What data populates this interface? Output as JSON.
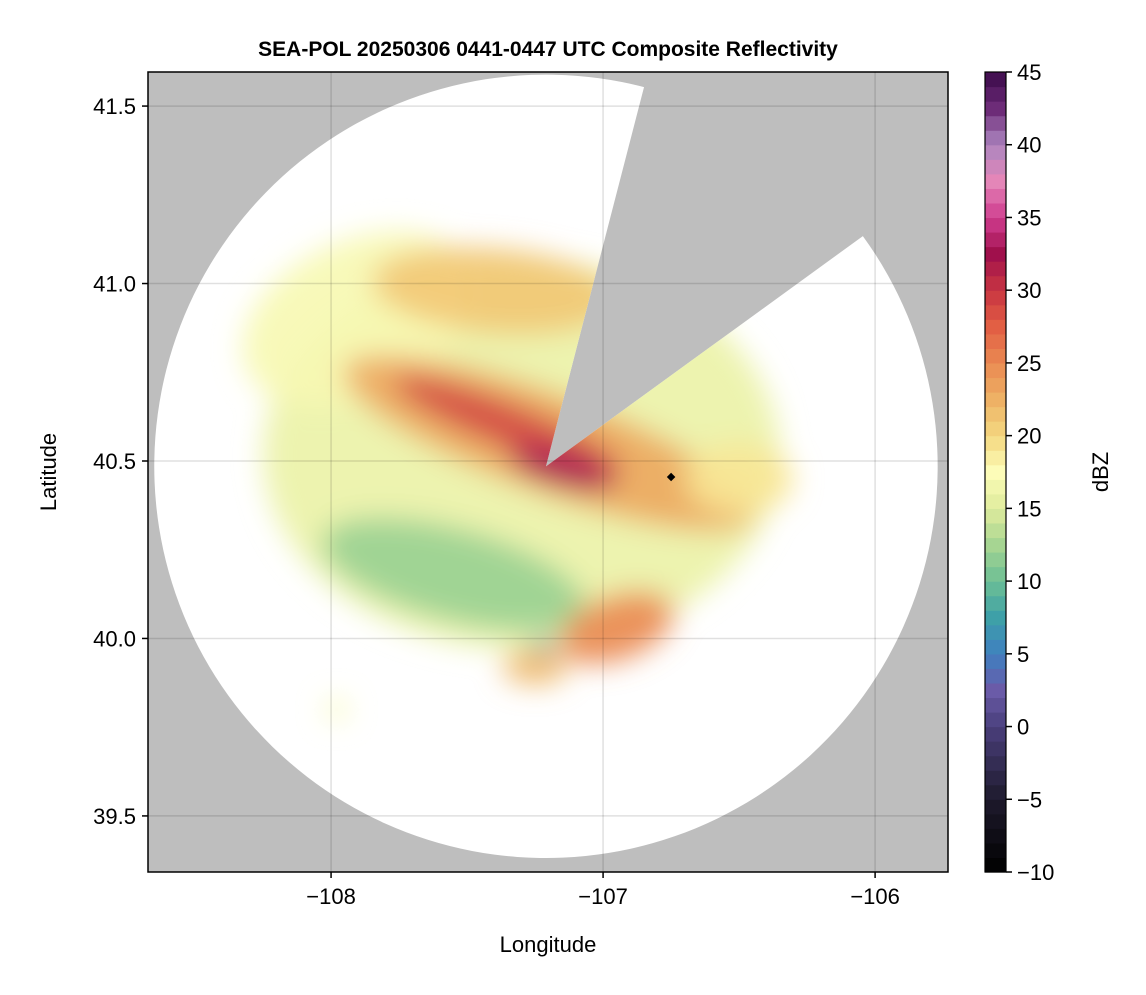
{
  "chart_data": {
    "type": "heatmap",
    "title": "SEA-POL 20250306 0441-0447 UTC Composite Reflectivity",
    "xlabel": "Longitude",
    "ylabel": "Latitude",
    "xlim": [
      -108.673,
      -105.732
    ],
    "ylim": [
      39.342,
      41.596
    ],
    "xticks": [
      -108,
      -107,
      -106
    ],
    "xtick_labels": [
      "−108",
      "−107",
      "−106"
    ],
    "yticks": [
      39.5,
      40.0,
      40.5,
      41.0,
      41.5
    ],
    "ytick_labels": [
      "39.5",
      "40.0",
      "40.5",
      "41.0",
      "41.5"
    ],
    "grid": true,
    "radar": {
      "lon": -107.21,
      "lat": 40.485,
      "range_deg_lon": 1.44,
      "blocked_sector_deg": [
        14.5,
        54
      ]
    },
    "marker": {
      "lon": -106.75,
      "lat": 40.455
    },
    "colorbar": {
      "label": "dBZ",
      "range": [
        -10,
        45
      ],
      "ticks": [
        -10,
        -5,
        0,
        5,
        10,
        15,
        20,
        25,
        30,
        35,
        40,
        45
      ],
      "tick_labels": [
        "−10",
        "−5",
        "0",
        "5",
        "10",
        "15",
        "20",
        "25",
        "30",
        "35",
        "40",
        "45"
      ],
      "anchors": [
        [
          -10,
          "#000000"
        ],
        [
          -5,
          "#1e1a2c"
        ],
        [
          0,
          "#4a3f7c"
        ],
        [
          2.5,
          "#6a5ba8"
        ],
        [
          5,
          "#3f7fc0"
        ],
        [
          7.5,
          "#3ea0a8"
        ],
        [
          10,
          "#6cbf95"
        ],
        [
          12.5,
          "#a6d592"
        ],
        [
          15,
          "#dfec9d"
        ],
        [
          17.5,
          "#fdfcb8"
        ],
        [
          20,
          "#f4d880"
        ],
        [
          22.5,
          "#eeb165"
        ],
        [
          25,
          "#ea8a52"
        ],
        [
          27.5,
          "#e25f44"
        ],
        [
          30,
          "#c83542"
        ],
        [
          32.5,
          "#a0104c"
        ],
        [
          35,
          "#cf3d8f"
        ],
        [
          37.5,
          "#e486b8"
        ],
        [
          40,
          "#ad86c0"
        ],
        [
          42.5,
          "#6d2c78"
        ],
        [
          45,
          "#3b0a4a"
        ]
      ]
    },
    "echo_regions": [
      {
        "lon": -107.3,
        "lat": 40.52,
        "rx": 0.95,
        "ry": 0.55,
        "rot": 0,
        "dbz": 16
      },
      {
        "lon": -107.9,
        "lat": 40.9,
        "rx": 0.45,
        "ry": 0.22,
        "rot": -25,
        "dbz": 17
      },
      {
        "lon": -107.55,
        "lat": 40.18,
        "rx": 0.5,
        "ry": 0.13,
        "rot": 15,
        "dbz": 12
      },
      {
        "lon": -107.2,
        "lat": 40.55,
        "rx": 0.8,
        "ry": 0.14,
        "rot": 20,
        "dbz": 23
      },
      {
        "lon": -107.4,
        "lat": 40.98,
        "rx": 0.45,
        "ry": 0.12,
        "rot": 5,
        "dbz": 21
      },
      {
        "lon": -107.35,
        "lat": 40.6,
        "rx": 0.45,
        "ry": 0.06,
        "rot": 22,
        "dbz": 29
      },
      {
        "lon": -107.15,
        "lat": 40.48,
        "rx": 0.2,
        "ry": 0.05,
        "rot": 15,
        "dbz": 33
      },
      {
        "lon": -106.95,
        "lat": 40.03,
        "rx": 0.22,
        "ry": 0.09,
        "rot": -20,
        "dbz": 25
      },
      {
        "lon": -107.25,
        "lat": 39.92,
        "rx": 0.12,
        "ry": 0.05,
        "rot": 0,
        "dbz": 22
      },
      {
        "lon": -107.22,
        "lat": 39.98,
        "rx": 0.05,
        "ry": 0.015,
        "rot": 0,
        "dbz": 6
      },
      {
        "lon": -106.5,
        "lat": 40.45,
        "rx": 0.2,
        "ry": 0.1,
        "rot": 0,
        "dbz": 19
      },
      {
        "lon": -107.98,
        "lat": 39.8,
        "rx": 0.04,
        "ry": 0.03,
        "rot": 0,
        "dbz": 17
      }
    ]
  }
}
